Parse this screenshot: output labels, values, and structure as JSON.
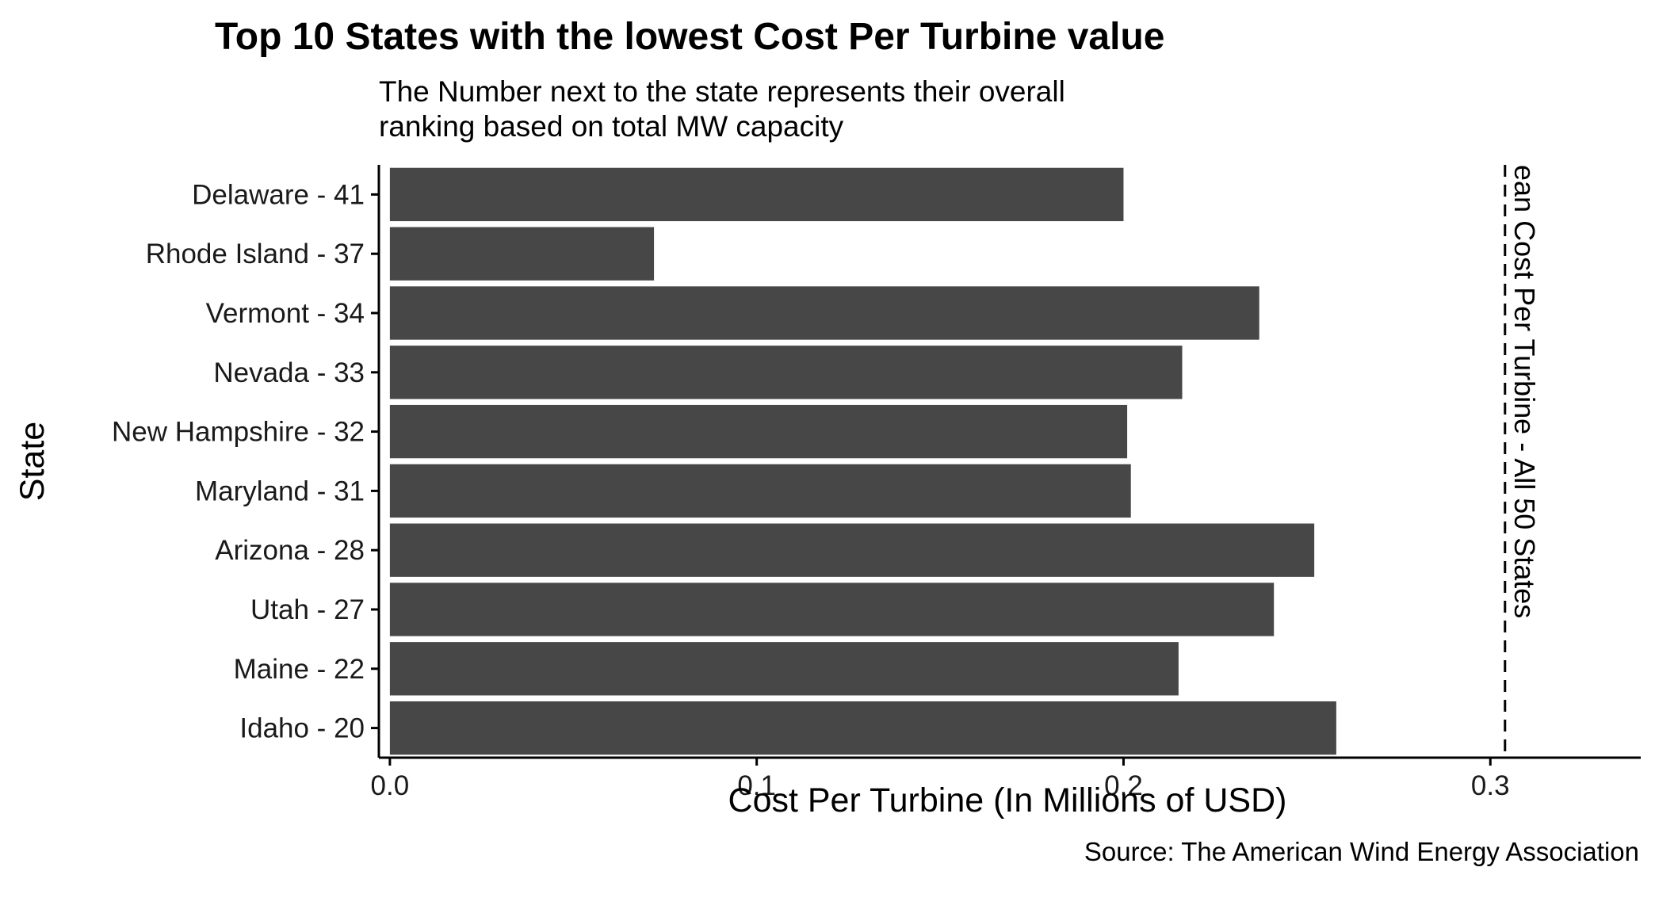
{
  "chart_data": {
    "type": "bar",
    "orientation": "horizontal",
    "title": "Top 10 States with the lowest Cost Per Turbine value",
    "subtitle_lines": [
      "The Number next to the state represents their overall",
      "ranking based on total MW capacity"
    ],
    "xlabel": "Cost Per Turbine (In Millions of USD)",
    "ylabel": "State",
    "caption": "Source: The American Wind Energy Association",
    "categories": [
      "Delaware - 41",
      "Rhode Island - 37",
      "Vermont - 34",
      "Nevada - 33",
      "New Hampshire - 32",
      "Maryland - 31",
      "Arizona - 28",
      "Utah - 27",
      "Maine - 22",
      "Idaho - 20"
    ],
    "values": [
      0.2,
      0.072,
      0.237,
      0.216,
      0.201,
      0.202,
      0.252,
      0.241,
      0.215,
      0.258
    ],
    "xlim": [
      -0.003,
      0.341
    ],
    "xticks": [
      0.0,
      0.1,
      0.2,
      0.3
    ],
    "xtick_labels": [
      "0.0",
      "0.1",
      "0.2",
      "0.3"
    ],
    "reference_line": {
      "value": 0.304,
      "style": "dashed",
      "label": "ean Cost Per Turbine - All 50 States"
    },
    "grid": false,
    "colors": {
      "bar": "#474747",
      "axis": "#000000",
      "text": "#1a1a1a"
    }
  }
}
